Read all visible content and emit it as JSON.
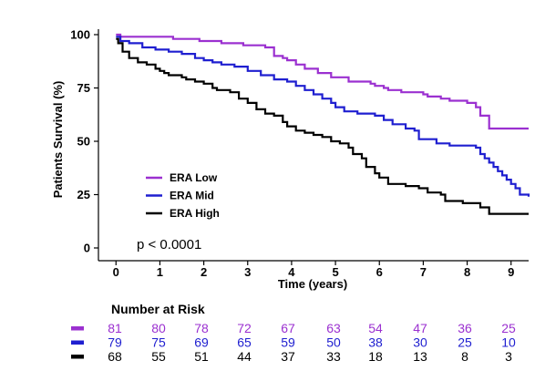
{
  "chart_data": {
    "type": "line",
    "ylabel": "Patients Survival (%)",
    "xlabel": "Time (years)",
    "xlim": [
      -0.4,
      9.4
    ],
    "ylim": [
      0,
      100
    ],
    "xticks": [
      0,
      1,
      2,
      3,
      4,
      5,
      6,
      7,
      8,
      9
    ],
    "yticks": [
      0,
      25,
      50,
      75,
      100
    ],
    "annotation": "p < 0.0001",
    "legend_position": "lower-left",
    "series": [
      {
        "name": "ERA Low",
        "color": "#9b30d0",
        "x": [
          0,
          0.1,
          0.5,
          1.1,
          1.3,
          1.9,
          2.2,
          2.4,
          2.9,
          3.4,
          3.6,
          3.8,
          3.9,
          4.1,
          4.3,
          4.6,
          4.9,
          5.3,
          5.8,
          5.9,
          6.1,
          6.2,
          6.5,
          7.0,
          7.1,
          7.4,
          7.6,
          8.0,
          8.2,
          8.3,
          8.5,
          9.4
        ],
        "y": [
          100,
          99,
          99,
          99,
          98,
          97,
          97,
          96,
          95,
          94,
          90,
          89,
          88,
          86,
          84,
          82,
          80,
          78,
          77,
          76,
          75,
          74,
          73,
          72,
          71,
          70,
          69,
          68,
          66,
          62,
          56,
          56
        ]
      },
      {
        "name": "ERA Mid",
        "color": "#1f1fd0",
        "x": [
          0,
          0.1,
          0.3,
          0.6,
          0.9,
          1.2,
          1.5,
          1.8,
          2.0,
          2.2,
          2.4,
          2.7,
          3.0,
          3.3,
          3.6,
          3.9,
          4.1,
          4.3,
          4.5,
          4.7,
          4.9,
          5.0,
          5.2,
          5.5,
          5.9,
          6.1,
          6.3,
          6.6,
          6.8,
          6.9,
          7.3,
          7.6,
          8.2,
          8.3,
          8.4,
          8.5,
          8.6,
          8.7,
          8.8,
          8.9,
          9.0,
          9.1,
          9.2,
          9.3,
          9.4
        ],
        "y": [
          99,
          97,
          96,
          94,
          93,
          92,
          91,
          89,
          88,
          87,
          86,
          85,
          83,
          81,
          79,
          78,
          76,
          74,
          72,
          70,
          68,
          66,
          64,
          63,
          62,
          60,
          58,
          56,
          55,
          51,
          49,
          48,
          47,
          44,
          42,
          40,
          38,
          36,
          34,
          32,
          30,
          28,
          25,
          25,
          24
        ]
      },
      {
        "name": "ERA High",
        "color": "#000000",
        "x": [
          0,
          0.05,
          0.15,
          0.3,
          0.5,
          0.7,
          0.9,
          1.0,
          1.1,
          1.2,
          1.5,
          1.6,
          1.8,
          2.0,
          2.2,
          2.3,
          2.6,
          2.8,
          3.0,
          3.2,
          3.4,
          3.6,
          3.8,
          3.9,
          4.1,
          4.3,
          4.5,
          4.7,
          4.9,
          5.1,
          5.3,
          5.4,
          5.6,
          5.7,
          5.9,
          6.0,
          6.2,
          6.6,
          6.9,
          7.1,
          7.4,
          7.5,
          7.9,
          8.3,
          8.5,
          9.4
        ],
        "y": [
          98,
          96,
          92,
          89,
          87,
          86,
          84,
          83,
          82,
          81,
          80,
          79,
          78,
          77,
          75,
          74,
          73,
          70,
          68,
          65,
          63,
          62,
          59,
          57,
          55,
          54,
          53,
          52,
          50,
          49,
          47,
          44,
          42,
          38,
          35,
          33,
          30,
          29,
          28,
          26,
          25,
          22,
          21,
          19,
          16,
          16
        ]
      }
    ]
  },
  "risk_table": {
    "title": "Number at Risk",
    "rows": [
      {
        "color": "#9b30d0",
        "values": [
          "81",
          "80",
          "78",
          "72",
          "67",
          "63",
          "54",
          "47",
          "36",
          "25"
        ]
      },
      {
        "color": "#1f1fd0",
        "values": [
          "79",
          "75",
          "69",
          "65",
          "59",
          "50",
          "38",
          "30",
          "25",
          "10"
        ]
      },
      {
        "color": "#000000",
        "values": [
          "68",
          "55",
          "51",
          "44",
          "37",
          "33",
          "18",
          "13",
          "8",
          "3"
        ]
      }
    ]
  }
}
